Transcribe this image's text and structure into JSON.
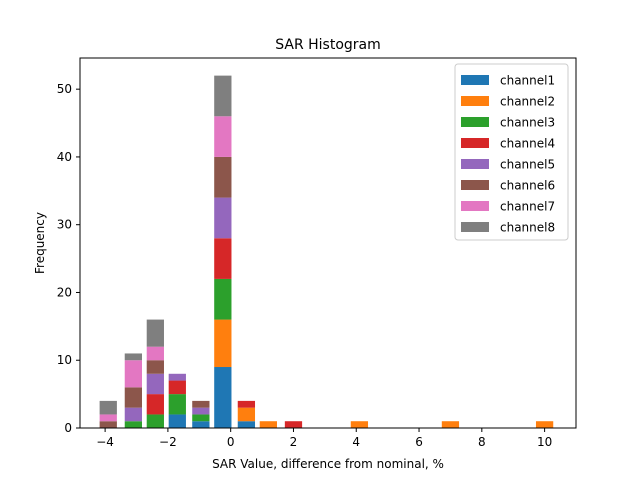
{
  "chart_data": {
    "type": "bar",
    "stacked": true,
    "title": "SAR Histogram",
    "xlabel": "SAR Value, difference from nominal, %",
    "ylabel": "Frequency",
    "xlim": [
      -4.8,
      11.0
    ],
    "ylim": [
      0,
      54.6
    ],
    "xticks": [
      -4,
      -2,
      0,
      2,
      4,
      6,
      8,
      10
    ],
    "xtick_labels": [
      "−4",
      "−2",
      "0",
      "2",
      "4",
      "6",
      "8",
      "10"
    ],
    "yticks": [
      0,
      10,
      20,
      30,
      40,
      50
    ],
    "ytick_labels": [
      "0",
      "10",
      "20",
      "30",
      "40",
      "50"
    ],
    "bar_width": 0.55,
    "legend_position": "top-right",
    "x": [
      -3.9,
      -3.1,
      -2.4,
      -1.7,
      -0.95,
      -0.25,
      0.5,
      1.2,
      2.0,
      4.1,
      7.0,
      10.0
    ],
    "series": [
      {
        "name": "channel1",
        "color": "#1f77b4",
        "values": [
          0,
          0,
          0,
          2,
          1,
          9,
          1,
          0,
          0,
          0,
          0,
          0
        ]
      },
      {
        "name": "channel2",
        "color": "#ff7f0e",
        "values": [
          0,
          0,
          0,
          0,
          0,
          7,
          2,
          1,
          0,
          1,
          1,
          1
        ]
      },
      {
        "name": "channel3",
        "color": "#2ca02c",
        "values": [
          0,
          1,
          2,
          3,
          1,
          6,
          0,
          0,
          0,
          0,
          0,
          0
        ]
      },
      {
        "name": "channel4",
        "color": "#d62728",
        "values": [
          0,
          0,
          3,
          2,
          0,
          6,
          1,
          0,
          1,
          0,
          0,
          0
        ]
      },
      {
        "name": "channel5",
        "color": "#9467bd",
        "values": [
          0,
          2,
          3,
          1,
          1,
          6,
          0,
          0,
          0,
          0,
          0,
          0
        ]
      },
      {
        "name": "channel6",
        "color": "#8c564b",
        "values": [
          1,
          3,
          2,
          0,
          1,
          6,
          0,
          0,
          0,
          0,
          0,
          0
        ]
      },
      {
        "name": "channel7",
        "color": "#e377c2",
        "values": [
          1,
          4,
          2,
          0,
          0,
          6,
          0,
          0,
          0,
          0,
          0,
          0
        ]
      },
      {
        "name": "channel8",
        "color": "#7f7f7f",
        "values": [
          2,
          1,
          4,
          0,
          0,
          6,
          0,
          0,
          0,
          0,
          0,
          0
        ]
      }
    ]
  }
}
